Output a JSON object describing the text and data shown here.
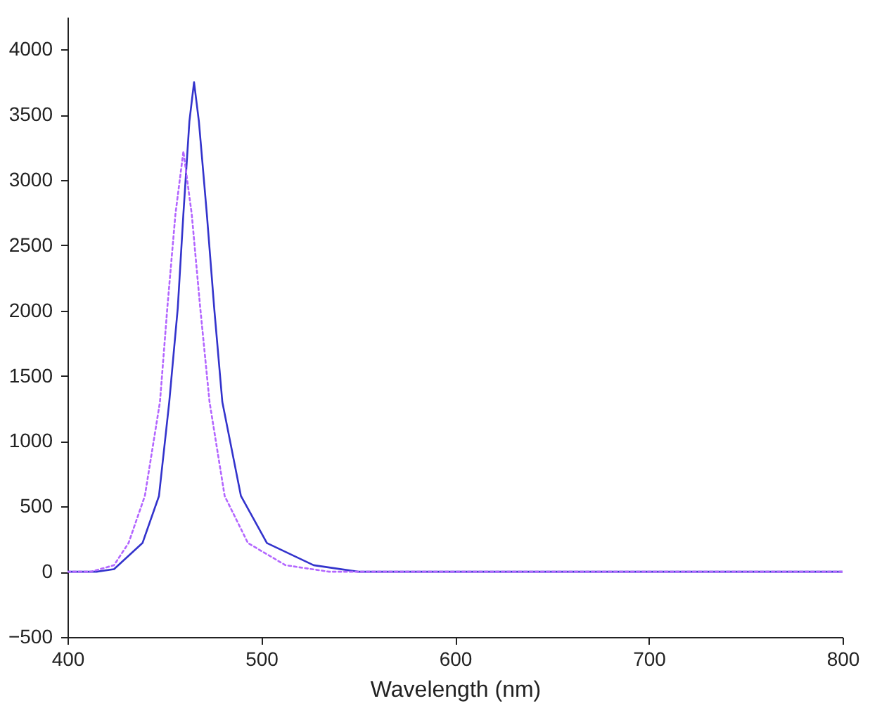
{
  "chart_data": {
    "type": "line",
    "xlabel": "Wavelength (nm)",
    "xlim": [
      400,
      800
    ],
    "ylim": [
      -500,
      4250
    ],
    "xticks": [
      400,
      500,
      600,
      700,
      800
    ],
    "yticks": [
      -500,
      0,
      500,
      1000,
      1500,
      2000,
      2500,
      3000,
      3500,
      4000
    ],
    "grid": false,
    "series": [
      {
        "color": "#3333cc",
        "line_style": "solid",
        "x": [
          400,
          415,
          424,
          438.7,
          447.2,
          452.5,
          456.9,
          459.8,
          462.9,
          465.3,
          467.8,
          471.9,
          475.7,
          479.9,
          489.5,
          502.9,
          527,
          550,
          600,
          700,
          800
        ],
        "values": [
          0,
          0,
          20,
          220,
          580,
          1300,
          2020,
          2740,
          3450,
          3750,
          3450,
          2740,
          2020,
          1300,
          580,
          220,
          50,
          0,
          0,
          0,
          0
        ]
      },
      {
        "color": "#b366ff",
        "line_style": "dotted",
        "x": [
          400,
          412,
          424,
          431.5,
          439.9,
          447.7,
          451.5,
          455.7,
          459.8,
          464.1,
          468.5,
          473.3,
          481.1,
          493.1,
          512.5,
          535,
          600,
          700,
          800
        ],
        "values": [
          0,
          0,
          50,
          220,
          580,
          1300,
          2020,
          2740,
          3220,
          2740,
          2020,
          1300,
          580,
          220,
          50,
          0,
          0,
          0,
          0
        ]
      }
    ]
  }
}
